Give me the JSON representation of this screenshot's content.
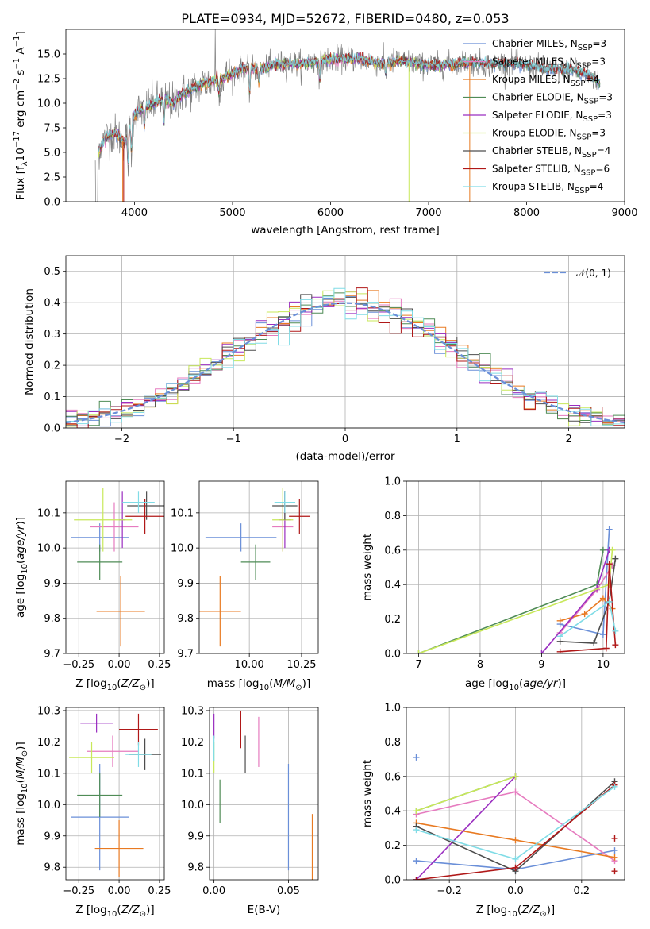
{
  "title": "PLATE=0934, MJD=52672, FIBERID=0480, z=0.053",
  "colors": {
    "Chabrier MILES": "#6a8fd8",
    "Salpeter MILES": "#e67bbf",
    "Kroupa MILES": "#e87a22",
    "Chabrier ELODIE": "#4f8c56",
    "Salpeter ELODIE": "#9a2ec0",
    "Kroupa ELODIE": "#c8e85a",
    "Chabrier STELIB": "#4d4d4d",
    "Salpeter STELIB": "#b01818",
    "Kroupa STELIB": "#80dce6",
    "data": "#808080"
  },
  "chart_data": [
    {
      "id": "spectrum",
      "type": "line",
      "title": "PLATE=0934, MJD=52672, FIBERID=0480, z=0.053",
      "xlabel": "wavelength [Angstrom, rest frame]",
      "ylabel_parts": [
        "Flux [f",
        "λ",
        "10",
        "−17",
        " erg cm",
        "−2",
        " s",
        "−1",
        " A",
        "−1",
        "]"
      ],
      "xlim": [
        3300,
        9000
      ],
      "ylim": [
        0,
        17.5
      ],
      "xticks": [
        4000,
        5000,
        6000,
        7000,
        8000,
        9000
      ],
      "yticks": [
        0.0,
        2.5,
        5.0,
        7.5,
        10.0,
        12.5,
        15.0
      ],
      "ytick_labels": [
        "0.0",
        "2.5",
        "5.0",
        "7.5",
        "10.0",
        "12.5",
        "15.0"
      ],
      "grid": false,
      "legend_position": "right",
      "legend": [
        {
          "name": "Chabrier MILES",
          "nssp": "3"
        },
        {
          "name": "Salpeter MILES",
          "nssp": "3"
        },
        {
          "name": "Kroupa MILES",
          "nssp": "4"
        },
        {
          "name": "Chabrier ELODIE",
          "nssp": "3"
        },
        {
          "name": "Salpeter ELODIE",
          "nssp": "3"
        },
        {
          "name": "Kroupa ELODIE",
          "nssp": "3"
        },
        {
          "name": "Chabrier STELIB",
          "nssp": "4"
        },
        {
          "name": "Salpeter STELIB",
          "nssp": "6"
        },
        {
          "name": "Kroupa STELIB",
          "nssp": "4"
        }
      ],
      "continuum_points": [
        [
          3600,
          4.5
        ],
        [
          3700,
          6.5
        ],
        [
          3800,
          7
        ],
        [
          3900,
          6
        ],
        [
          4000,
          9
        ],
        [
          4100,
          9.5
        ],
        [
          4200,
          10
        ],
        [
          4300,
          10.5
        ],
        [
          4400,
          10
        ],
        [
          4500,
          11
        ],
        [
          4700,
          12
        ],
        [
          4900,
          12.5
        ],
        [
          5100,
          13.5
        ],
        [
          5300,
          13.5
        ],
        [
          5500,
          14
        ],
        [
          5700,
          14
        ],
        [
          5900,
          14.3
        ],
        [
          6100,
          14.5
        ],
        [
          6300,
          14.5
        ],
        [
          6500,
          14
        ],
        [
          6700,
          14.3
        ],
        [
          6900,
          14
        ],
        [
          7100,
          13.8
        ],
        [
          7300,
          14
        ],
        [
          7400,
          14.2
        ],
        [
          7600,
          14
        ],
        [
          7900,
          14
        ],
        [
          8200,
          13.5
        ],
        [
          8500,
          13.3
        ],
        [
          8700,
          12.5
        ],
        [
          8750,
          12
        ]
      ]
    },
    {
      "id": "residuals",
      "type": "histogram",
      "xlabel": "(data-model)/error",
      "ylabel": "Normed distribution",
      "xlim": [
        -2.5,
        2.5
      ],
      "ylim": [
        0,
        0.55
      ],
      "xticks": [
        -2,
        -1,
        0,
        1,
        2
      ],
      "xtick_labels": [
        "−2",
        "−1",
        "0",
        "1",
        "2"
      ],
      "yticks": [
        0.0,
        0.1,
        0.2,
        0.3,
        0.4,
        0.5
      ],
      "ytick_labels": [
        "0.0",
        "0.1",
        "0.2",
        "0.3",
        "0.4",
        "0.5"
      ],
      "grid": true,
      "reference_curve": {
        "name": "𝒩(0, 1)",
        "mean": 0,
        "sigma": 1
      },
      "legend_position": "top-right",
      "bin_width": 0.1
    },
    {
      "id": "Z-age",
      "type": "errorbar",
      "xlabel": "Z [log10(Z/Z⊙)]",
      "ylabel": "age  [log10(age/yr)]",
      "xlim": [
        -0.33,
        0.28
      ],
      "ylim": [
        9.7,
        10.19
      ],
      "xticks": [
        -0.25,
        0.0,
        0.25
      ],
      "xtick_labels": [
        "−0.25",
        "0.00",
        "0.25"
      ],
      "yticks": [
        9.7,
        9.8,
        9.9,
        10.0,
        10.1
      ],
      "ytick_labels": [
        "9.7",
        "9.8",
        "9.9",
        "10.0",
        "10.1"
      ],
      "grid": true,
      "points": [
        {
          "series": "Chabrier MILES",
          "x": -0.12,
          "y": 10.03,
          "xerr": 0.18,
          "yerr": 0.04
        },
        {
          "series": "Salpeter MILES",
          "x": -0.03,
          "y": 10.06,
          "xerr": 0.15,
          "yerr": 0.07
        },
        {
          "series": "Kroupa MILES",
          "x": 0.01,
          "y": 9.82,
          "xerr": 0.15,
          "yerr": 0.1
        },
        {
          "series": "Chabrier ELODIE",
          "x": -0.12,
          "y": 9.96,
          "xerr": 0.14,
          "yerr": 0.05
        },
        {
          "series": "Salpeter ELODIE",
          "x": 0.02,
          "y": 10.08,
          "xerr": 0.02,
          "yerr": 0.08
        },
        {
          "series": "Kroupa ELODIE",
          "x": -0.1,
          "y": 10.08,
          "xerr": 0.18,
          "yerr": 0.09
        },
        {
          "series": "Chabrier STELIB",
          "x": 0.17,
          "y": 10.12,
          "xerr": 0.12,
          "yerr": 0.04
        },
        {
          "series": "Salpeter STELIB",
          "x": 0.16,
          "y": 10.09,
          "xerr": 0.12,
          "yerr": 0.05
        },
        {
          "series": "Kroupa STELIB",
          "x": 0.12,
          "y": 10.13,
          "xerr": 0.1,
          "yerr": 0.03
        }
      ]
    },
    {
      "id": "mass-age",
      "type": "errorbar",
      "xlabel": "mass [log10(M/M⊙)]",
      "ylabel": "",
      "xlim": [
        9.76,
        10.33
      ],
      "ylim": [
        9.7,
        10.19
      ],
      "xticks": [
        10.0,
        10.25
      ],
      "xtick_labels": [
        "10.00",
        "10.25"
      ],
      "yticks": [
        9.7,
        9.8,
        9.9,
        10.0,
        10.1
      ],
      "ytick_labels": [
        "9.7",
        "9.8",
        "9.9",
        "10.0",
        "10.1"
      ],
      "grid": true,
      "points": [
        {
          "series": "Chabrier MILES",
          "x": 9.96,
          "y": 10.03,
          "xerr": 0.17,
          "yerr": 0.04
        },
        {
          "series": "Salpeter MILES",
          "x": 10.16,
          "y": 10.06,
          "xerr": 0.05,
          "yerr": 0.07
        },
        {
          "series": "Kroupa MILES",
          "x": 9.86,
          "y": 9.82,
          "xerr": 0.1,
          "yerr": 0.1
        },
        {
          "series": "Chabrier ELODIE",
          "x": 10.03,
          "y": 9.96,
          "xerr": 0.07,
          "yerr": 0.05
        },
        {
          "series": "Salpeter ELODIE",
          "x": 10.17,
          "y": 10.08,
          "xerr": 0.03,
          "yerr": 0.08
        },
        {
          "series": "Kroupa ELODIE",
          "x": 10.16,
          "y": 10.08,
          "xerr": 0.05,
          "yerr": 0.09
        },
        {
          "series": "Chabrier STELIB",
          "x": 10.17,
          "y": 10.12,
          "xerr": 0.06,
          "yerr": 0.04
        },
        {
          "series": "Salpeter STELIB",
          "x": 10.24,
          "y": 10.09,
          "xerr": 0.05,
          "yerr": 0.05
        },
        {
          "series": "Kroupa STELIB",
          "x": 10.17,
          "y": 10.13,
          "xerr": 0.05,
          "yerr": 0.03
        }
      ]
    },
    {
      "id": "age-weight",
      "type": "line",
      "xlabel": "age  [log10(age/yr)]",
      "ylabel": "mass weight",
      "xlim": [
        6.8,
        10.35
      ],
      "ylim": [
        0,
        1.0
      ],
      "xticks": [
        7,
        8,
        9,
        10
      ],
      "xtick_labels": [
        "7",
        "8",
        "9",
        "10"
      ],
      "yticks": [
        0.0,
        0.2,
        0.4,
        0.6,
        0.8,
        1.0
      ],
      "ytick_labels": [
        "0.0",
        "0.2",
        "0.4",
        "0.6",
        "0.8",
        "1.0"
      ],
      "grid": true,
      "series": [
        {
          "name": "Chabrier MILES",
          "points": [
            [
              9.3,
              0.17
            ],
            [
              10.0,
              0.11
            ],
            [
              10.1,
              0.72
            ]
          ]
        },
        {
          "name": "Salpeter MILES",
          "points": [
            [
              9.3,
              0.12
            ],
            [
              9.9,
              0.37
            ],
            [
              10.15,
              0.51
            ]
          ]
        },
        {
          "name": "Kroupa MILES",
          "points": [
            [
              9.3,
              0.19
            ],
            [
              9.7,
              0.23
            ],
            [
              10.0,
              0.32
            ],
            [
              10.15,
              0.26
            ]
          ]
        },
        {
          "name": "Chabrier ELODIE",
          "points": [
            [
              7.0,
              0.0
            ],
            [
              9.9,
              0.4
            ],
            [
              10.0,
              0.6
            ]
          ]
        },
        {
          "name": "Salpeter ELODIE",
          "points": [
            [
              9.0,
              0.0
            ],
            [
              9.9,
              0.38
            ],
            [
              10.1,
              0.6
            ]
          ]
        },
        {
          "name": "Kroupa ELODIE",
          "points": [
            [
              7.0,
              0.0
            ],
            [
              10.1,
              0.4
            ],
            [
              10.15,
              0.6
            ]
          ]
        },
        {
          "name": "Chabrier STELIB",
          "points": [
            [
              9.3,
              0.07
            ],
            [
              9.85,
              0.06
            ],
            [
              10.1,
              0.3
            ],
            [
              10.2,
              0.55
            ]
          ]
        },
        {
          "name": "Salpeter STELIB",
          "points": [
            [
              9.3,
              0.01
            ],
            [
              10.05,
              0.03
            ],
            [
              10.1,
              0.52
            ],
            [
              10.2,
              0.05
            ]
          ]
        },
        {
          "name": "Kroupa STELIB",
          "points": [
            [
              9.3,
              0.1
            ],
            [
              10.1,
              0.3
            ],
            [
              10.2,
              0.13
            ]
          ]
        }
      ]
    },
    {
      "id": "Z-mass",
      "type": "errorbar",
      "xlabel": "Z [log10(Z/Z⊙)]",
      "ylabel": "mass [log10(M/M⊙)]",
      "xlim": [
        -0.33,
        0.28
      ],
      "ylim": [
        9.76,
        10.31
      ],
      "xticks": [
        -0.25,
        0.0,
        0.25
      ],
      "xtick_labels": [
        "−0.25",
        "0.00",
        "0.25"
      ],
      "yticks": [
        9.8,
        9.9,
        10.0,
        10.1,
        10.2,
        10.3
      ],
      "ytick_labels": [
        "9.8",
        "9.9",
        "10.0",
        "10.1",
        "10.2",
        "10.3"
      ],
      "grid": true,
      "points": [
        {
          "series": "Chabrier MILES",
          "x": -0.12,
          "y": 9.96,
          "xerr": 0.18,
          "yerr": 0.17
        },
        {
          "series": "Salpeter MILES",
          "x": -0.04,
          "y": 10.17,
          "xerr": 0.16,
          "yerr": 0.05
        },
        {
          "series": "Kroupa MILES",
          "x": 0.0,
          "y": 9.86,
          "xerr": 0.15,
          "yerr": 0.09
        },
        {
          "series": "Chabrier ELODIE",
          "x": -0.12,
          "y": 10.03,
          "xerr": 0.14,
          "yerr": 0.07
        },
        {
          "series": "Salpeter ELODIE",
          "x": -0.14,
          "y": 10.26,
          "xerr": 0.1,
          "yerr": 0.03
        },
        {
          "series": "Kroupa ELODIE",
          "x": -0.17,
          "y": 10.15,
          "xerr": 0.14,
          "yerr": 0.05
        },
        {
          "series": "Chabrier STELIB",
          "x": 0.16,
          "y": 10.16,
          "xerr": 0.1,
          "yerr": 0.05
        },
        {
          "series": "Salpeter STELIB",
          "x": 0.12,
          "y": 10.24,
          "xerr": 0.12,
          "yerr": 0.05
        },
        {
          "series": "Kroupa STELIB",
          "x": 0.12,
          "y": 10.16,
          "xerr": 0.08,
          "yerr": 0.04
        }
      ]
    },
    {
      "id": "ebv-mass",
      "type": "errorbar",
      "xlabel": "E(B-V)",
      "ylabel": "",
      "xlim": [
        -0.003,
        0.07
      ],
      "ylim": [
        9.76,
        10.31
      ],
      "xticks": [
        0.0,
        0.05
      ],
      "xtick_labels": [
        "0.00",
        "0.05"
      ],
      "yticks": [
        9.8,
        9.9,
        10.0,
        10.1,
        10.2,
        10.3
      ],
      "ytick_labels": [
        "9.8",
        "9.9",
        "10.0",
        "10.1",
        "10.2",
        "10.3"
      ],
      "grid": true,
      "points": [
        {
          "series": "Chabrier MILES",
          "x": 0.05,
          "y": 9.96,
          "xerr": 0.0,
          "yerr": 0.17
        },
        {
          "series": "Salpeter MILES",
          "x": 0.03,
          "y": 10.2,
          "xerr": 0.0,
          "yerr": 0.08
        },
        {
          "series": "Kroupa MILES",
          "x": 0.066,
          "y": 9.86,
          "xerr": 0.0,
          "yerr": 0.11
        },
        {
          "series": "Chabrier ELODIE",
          "x": 0.004,
          "y": 10.01,
          "xerr": 0.0,
          "yerr": 0.07
        },
        {
          "series": "Salpeter ELODIE",
          "x": 0.0,
          "y": 10.25,
          "xerr": 0.0,
          "yerr": 0.04
        },
        {
          "series": "Kroupa ELODIE",
          "x": 0.0,
          "y": 10.15,
          "xerr": 0.0,
          "yerr": 0.05
        },
        {
          "series": "Chabrier STELIB",
          "x": 0.021,
          "y": 10.16,
          "xerr": 0.0,
          "yerr": 0.06
        },
        {
          "series": "Salpeter STELIB",
          "x": 0.018,
          "y": 10.24,
          "xerr": 0.0,
          "yerr": 0.06
        },
        {
          "series": "Kroupa STELIB",
          "x": 0.0,
          "y": 10.18,
          "xerr": 0.0,
          "yerr": 0.04
        }
      ]
    },
    {
      "id": "Z-weight",
      "type": "line",
      "xlabel": "Z [log10(Z/Z⊙)]",
      "ylabel": "mass weight",
      "xlim": [
        -0.33,
        0.33
      ],
      "ylim": [
        0,
        1.0
      ],
      "xticks": [
        -0.2,
        0.0,
        0.2
      ],
      "xtick_labels": [
        "−0.2",
        "0.0",
        "0.2"
      ],
      "yticks": [
        0.0,
        0.2,
        0.4,
        0.6,
        0.8,
        1.0
      ],
      "ytick_labels": [
        "0.0",
        "0.2",
        "0.4",
        "0.6",
        "0.8",
        "1.0"
      ],
      "grid": true,
      "series": [
        {
          "name": "Chabrier MILES",
          "points": [
            [
              -0.3,
              0.11
            ],
            [
              0.0,
              0.06
            ],
            [
              0.3,
              0.17
            ]
          ],
          "extra_marks": [
            [
              -0.3,
              0.71
            ]
          ]
        },
        {
          "name": "Salpeter MILES",
          "points": [
            [
              -0.3,
              0.38
            ],
            [
              0.0,
              0.51
            ],
            [
              0.3,
              0.11
            ]
          ]
        },
        {
          "name": "Kroupa MILES",
          "points": [
            [
              -0.3,
              0.33
            ],
            [
              0.0,
              0.23
            ],
            [
              0.3,
              0.13
            ]
          ]
        },
        {
          "name": "Chabrier ELODIE",
          "points": [
            [
              -0.3,
              0.4
            ],
            [
              0.0,
              0.6
            ]
          ]
        },
        {
          "name": "Salpeter ELODIE",
          "points": [
            [
              -0.3,
              0.0
            ],
            [
              0.0,
              0.6
            ]
          ]
        },
        {
          "name": "Kroupa ELODIE",
          "points": [
            [
              -0.3,
              0.4
            ],
            [
              0.0,
              0.6
            ]
          ]
        },
        {
          "name": "Chabrier STELIB",
          "points": [
            [
              -0.3,
              0.31
            ],
            [
              0.0,
              0.05
            ],
            [
              0.3,
              0.57
            ]
          ]
        },
        {
          "name": "Salpeter STELIB",
          "points": [
            [
              -0.3,
              0.0
            ],
            [
              0.0,
              0.07
            ],
            [
              0.3,
              0.55
            ]
          ],
          "extra_marks": [
            [
              0.3,
              0.05
            ],
            [
              0.3,
              0.24
            ]
          ]
        },
        {
          "name": "Kroupa STELIB",
          "points": [
            [
              -0.3,
              0.29
            ],
            [
              0.0,
              0.12
            ],
            [
              0.3,
              0.54
            ]
          ]
        }
      ]
    }
  ]
}
